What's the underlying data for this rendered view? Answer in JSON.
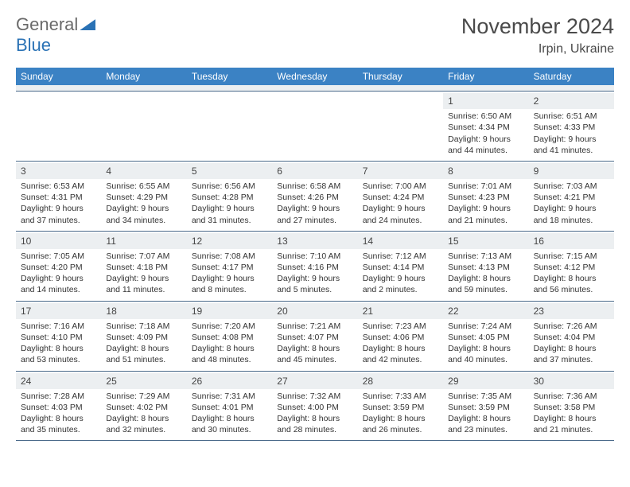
{
  "logo": {
    "text1": "General",
    "text2": "Blue"
  },
  "title": "November 2024",
  "location": "Irpin, Ukraine",
  "header_bg": "#3b82c4",
  "weekday_color": "#ffffff",
  "daynum_bg": "#eceff1",
  "border_color": "#4a6a8a",
  "text_color": "#333333",
  "font_family": "Arial",
  "weekdays": [
    "Sunday",
    "Monday",
    "Tuesday",
    "Wednesday",
    "Thursday",
    "Friday",
    "Saturday"
  ],
  "weeks": [
    [
      {
        "n": "",
        "sr": "",
        "ss": "",
        "dl": ""
      },
      {
        "n": "",
        "sr": "",
        "ss": "",
        "dl": ""
      },
      {
        "n": "",
        "sr": "",
        "ss": "",
        "dl": ""
      },
      {
        "n": "",
        "sr": "",
        "ss": "",
        "dl": ""
      },
      {
        "n": "",
        "sr": "",
        "ss": "",
        "dl": ""
      },
      {
        "n": "1",
        "sr": "Sunrise: 6:50 AM",
        "ss": "Sunset: 4:34 PM",
        "dl": "Daylight: 9 hours and 44 minutes."
      },
      {
        "n": "2",
        "sr": "Sunrise: 6:51 AM",
        "ss": "Sunset: 4:33 PM",
        "dl": "Daylight: 9 hours and 41 minutes."
      }
    ],
    [
      {
        "n": "3",
        "sr": "Sunrise: 6:53 AM",
        "ss": "Sunset: 4:31 PM",
        "dl": "Daylight: 9 hours and 37 minutes."
      },
      {
        "n": "4",
        "sr": "Sunrise: 6:55 AM",
        "ss": "Sunset: 4:29 PM",
        "dl": "Daylight: 9 hours and 34 minutes."
      },
      {
        "n": "5",
        "sr": "Sunrise: 6:56 AM",
        "ss": "Sunset: 4:28 PM",
        "dl": "Daylight: 9 hours and 31 minutes."
      },
      {
        "n": "6",
        "sr": "Sunrise: 6:58 AM",
        "ss": "Sunset: 4:26 PM",
        "dl": "Daylight: 9 hours and 27 minutes."
      },
      {
        "n": "7",
        "sr": "Sunrise: 7:00 AM",
        "ss": "Sunset: 4:24 PM",
        "dl": "Daylight: 9 hours and 24 minutes."
      },
      {
        "n": "8",
        "sr": "Sunrise: 7:01 AM",
        "ss": "Sunset: 4:23 PM",
        "dl": "Daylight: 9 hours and 21 minutes."
      },
      {
        "n": "9",
        "sr": "Sunrise: 7:03 AM",
        "ss": "Sunset: 4:21 PM",
        "dl": "Daylight: 9 hours and 18 minutes."
      }
    ],
    [
      {
        "n": "10",
        "sr": "Sunrise: 7:05 AM",
        "ss": "Sunset: 4:20 PM",
        "dl": "Daylight: 9 hours and 14 minutes."
      },
      {
        "n": "11",
        "sr": "Sunrise: 7:07 AM",
        "ss": "Sunset: 4:18 PM",
        "dl": "Daylight: 9 hours and 11 minutes."
      },
      {
        "n": "12",
        "sr": "Sunrise: 7:08 AM",
        "ss": "Sunset: 4:17 PM",
        "dl": "Daylight: 9 hours and 8 minutes."
      },
      {
        "n": "13",
        "sr": "Sunrise: 7:10 AM",
        "ss": "Sunset: 4:16 PM",
        "dl": "Daylight: 9 hours and 5 minutes."
      },
      {
        "n": "14",
        "sr": "Sunrise: 7:12 AM",
        "ss": "Sunset: 4:14 PM",
        "dl": "Daylight: 9 hours and 2 minutes."
      },
      {
        "n": "15",
        "sr": "Sunrise: 7:13 AM",
        "ss": "Sunset: 4:13 PM",
        "dl": "Daylight: 8 hours and 59 minutes."
      },
      {
        "n": "16",
        "sr": "Sunrise: 7:15 AM",
        "ss": "Sunset: 4:12 PM",
        "dl": "Daylight: 8 hours and 56 minutes."
      }
    ],
    [
      {
        "n": "17",
        "sr": "Sunrise: 7:16 AM",
        "ss": "Sunset: 4:10 PM",
        "dl": "Daylight: 8 hours and 53 minutes."
      },
      {
        "n": "18",
        "sr": "Sunrise: 7:18 AM",
        "ss": "Sunset: 4:09 PM",
        "dl": "Daylight: 8 hours and 51 minutes."
      },
      {
        "n": "19",
        "sr": "Sunrise: 7:20 AM",
        "ss": "Sunset: 4:08 PM",
        "dl": "Daylight: 8 hours and 48 minutes."
      },
      {
        "n": "20",
        "sr": "Sunrise: 7:21 AM",
        "ss": "Sunset: 4:07 PM",
        "dl": "Daylight: 8 hours and 45 minutes."
      },
      {
        "n": "21",
        "sr": "Sunrise: 7:23 AM",
        "ss": "Sunset: 4:06 PM",
        "dl": "Daylight: 8 hours and 42 minutes."
      },
      {
        "n": "22",
        "sr": "Sunrise: 7:24 AM",
        "ss": "Sunset: 4:05 PM",
        "dl": "Daylight: 8 hours and 40 minutes."
      },
      {
        "n": "23",
        "sr": "Sunrise: 7:26 AM",
        "ss": "Sunset: 4:04 PM",
        "dl": "Daylight: 8 hours and 37 minutes."
      }
    ],
    [
      {
        "n": "24",
        "sr": "Sunrise: 7:28 AM",
        "ss": "Sunset: 4:03 PM",
        "dl": "Daylight: 8 hours and 35 minutes."
      },
      {
        "n": "25",
        "sr": "Sunrise: 7:29 AM",
        "ss": "Sunset: 4:02 PM",
        "dl": "Daylight: 8 hours and 32 minutes."
      },
      {
        "n": "26",
        "sr": "Sunrise: 7:31 AM",
        "ss": "Sunset: 4:01 PM",
        "dl": "Daylight: 8 hours and 30 minutes."
      },
      {
        "n": "27",
        "sr": "Sunrise: 7:32 AM",
        "ss": "Sunset: 4:00 PM",
        "dl": "Daylight: 8 hours and 28 minutes."
      },
      {
        "n": "28",
        "sr": "Sunrise: 7:33 AM",
        "ss": "Sunset: 3:59 PM",
        "dl": "Daylight: 8 hours and 26 minutes."
      },
      {
        "n": "29",
        "sr": "Sunrise: 7:35 AM",
        "ss": "Sunset: 3:59 PM",
        "dl": "Daylight: 8 hours and 23 minutes."
      },
      {
        "n": "30",
        "sr": "Sunrise: 7:36 AM",
        "ss": "Sunset: 3:58 PM",
        "dl": "Daylight: 8 hours and 21 minutes."
      }
    ]
  ]
}
